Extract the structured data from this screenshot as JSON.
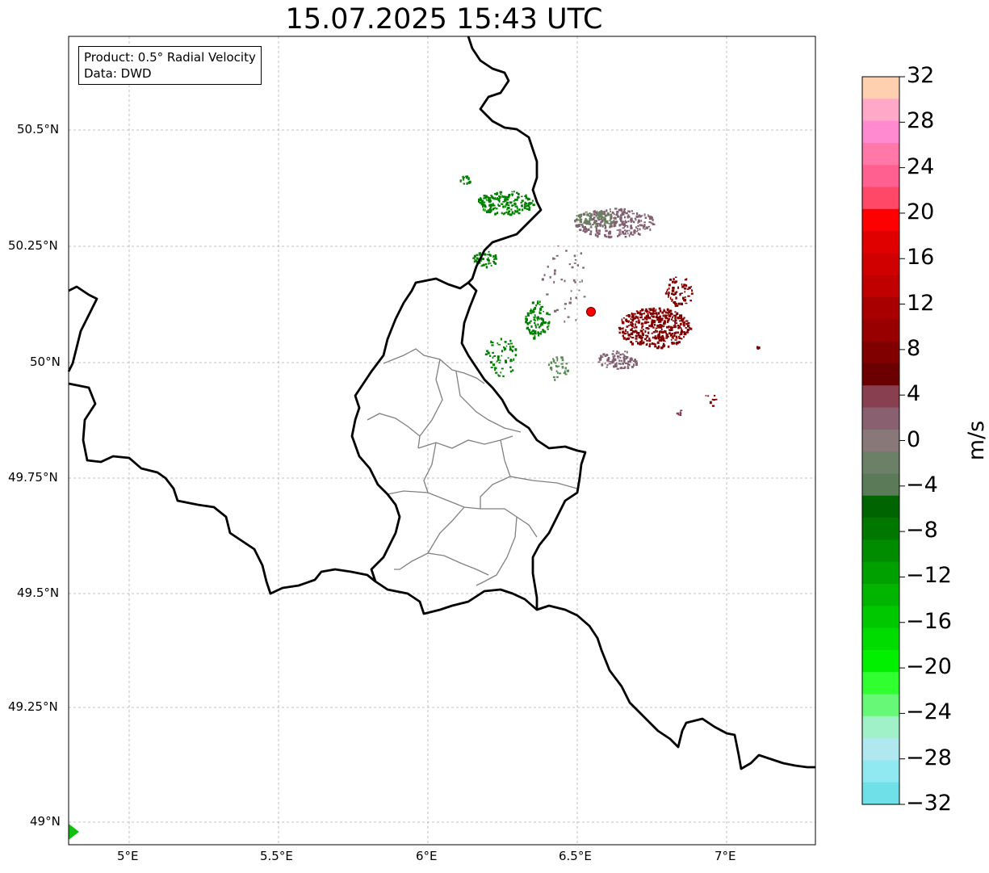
{
  "title": "15.07.2025 15:43 UTC",
  "info": {
    "product": "Product: 0.5° Radial Velocity",
    "data": "Data: DWD"
  },
  "lat_ticks": [
    "50.5°N",
    "50.25°N",
    "50°N",
    "49.75°N",
    "49.5°N",
    "49.25°N",
    "49°N"
  ],
  "lon_ticks": [
    "5°E",
    "5.5°E",
    "6°E",
    "6.5°E",
    "7°E"
  ],
  "colorbar": {
    "unit": "m/s",
    "min": -32,
    "max": 32,
    "ticks": [
      "32",
      "28",
      "24",
      "20",
      "16",
      "12",
      "8",
      "4",
      "0",
      "−4",
      "−8",
      "−12",
      "−16",
      "−20",
      "−24",
      "−28",
      "−32"
    ],
    "colors_top_to_bottom": [
      "#ffd0b0",
      "#ffa8c8",
      "#ff8ad0",
      "#ff78a8",
      "#ff6090",
      "#ff4868",
      "#ff0000",
      "#e00000",
      "#d00000",
      "#c00000",
      "#a80000",
      "#980000",
      "#800000",
      "#6a0000",
      "#884050",
      "#886070",
      "#887878",
      "#6c8068",
      "#5a7a58",
      "#006400",
      "#007800",
      "#008c00",
      "#00a000",
      "#00b400",
      "#00c800",
      "#00dc00",
      "#00f000",
      "#30ff30",
      "#68f878",
      "#a0f0c8",
      "#b0e8f0",
      "#90e8f0",
      "#70e0e8"
    ]
  },
  "radar_site_color": "#ff0000",
  "colors": {
    "border": "#000000",
    "admin_border": "#808080",
    "grid": "#b0b0b0",
    "outbound_echo": "#800000",
    "inbound_echo": "#008000",
    "near_zero_echo": "#806070"
  }
}
